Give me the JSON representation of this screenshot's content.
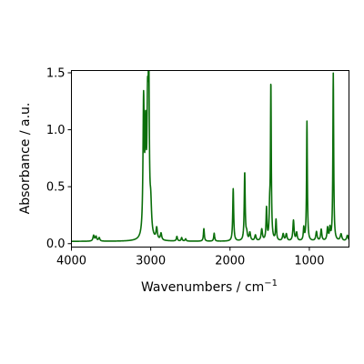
{
  "chart_data": {
    "type": "line",
    "xlabel_base": "Wavenumbers / cm",
    "xlabel_sup": "−1",
    "ylabel": "Absorbance / a.u.",
    "xlim": [
      4000,
      500
    ],
    "ylim": [
      -0.03,
      1.52
    ],
    "x_ticks": [
      {
        "value": 4000,
        "label": "4000"
      },
      {
        "value": 3000,
        "label": "3000"
      },
      {
        "value": 2000,
        "label": "2000"
      },
      {
        "value": 1000,
        "label": "1000"
      }
    ],
    "y_ticks": [
      {
        "value": 0.0,
        "label": "0.0"
      },
      {
        "value": 0.5,
        "label": "0.5"
      },
      {
        "value": 1.0,
        "label": "1.0"
      },
      {
        "value": 1.5,
        "label": "1.5"
      }
    ],
    "grid": false,
    "series": [
      {
        "color": "#0a6e0a",
        "baseline": 0.02,
        "peaks": [
          [
            3720,
            0.05,
            10
          ],
          [
            3690,
            0.04,
            10
          ],
          [
            3650,
            0.03,
            10
          ],
          [
            3090,
            1.17,
            9
          ],
          [
            3065,
            0.85,
            9
          ],
          [
            3040,
            0.98,
            9
          ],
          [
            3025,
            1.36,
            8
          ],
          [
            3000,
            0.25,
            12
          ],
          [
            2925,
            0.1,
            10
          ],
          [
            2870,
            0.06,
            10
          ],
          [
            2670,
            0.04,
            8
          ],
          [
            2610,
            0.03,
            8
          ],
          [
            2560,
            0.02,
            8
          ],
          [
            2330,
            0.11,
            7
          ],
          [
            2200,
            0.07,
            7
          ],
          [
            1960,
            0.46,
            7
          ],
          [
            1815,
            0.6,
            7
          ],
          [
            1790,
            0.06,
            10
          ],
          [
            1750,
            0.07,
            10
          ],
          [
            1680,
            0.05,
            10
          ],
          [
            1600,
            0.1,
            10
          ],
          [
            1540,
            0.28,
            7
          ],
          [
            1500,
            0.23,
            7
          ],
          [
            1485,
            1.36,
            6
          ],
          [
            1420,
            0.18,
            7
          ],
          [
            1330,
            0.06,
            10
          ],
          [
            1290,
            0.06,
            10
          ],
          [
            1200,
            0.18,
            9
          ],
          [
            1160,
            0.07,
            9
          ],
          [
            1070,
            0.11,
            7
          ],
          [
            1030,
            1.05,
            6
          ],
          [
            910,
            0.08,
            10
          ],
          [
            850,
            0.1,
            9
          ],
          [
            770,
            0.11,
            9
          ],
          [
            740,
            0.1,
            8
          ],
          [
            698,
            1.47,
            6
          ],
          [
            600,
            0.06,
            12
          ],
          [
            520,
            0.05,
            12
          ]
        ]
      }
    ]
  }
}
